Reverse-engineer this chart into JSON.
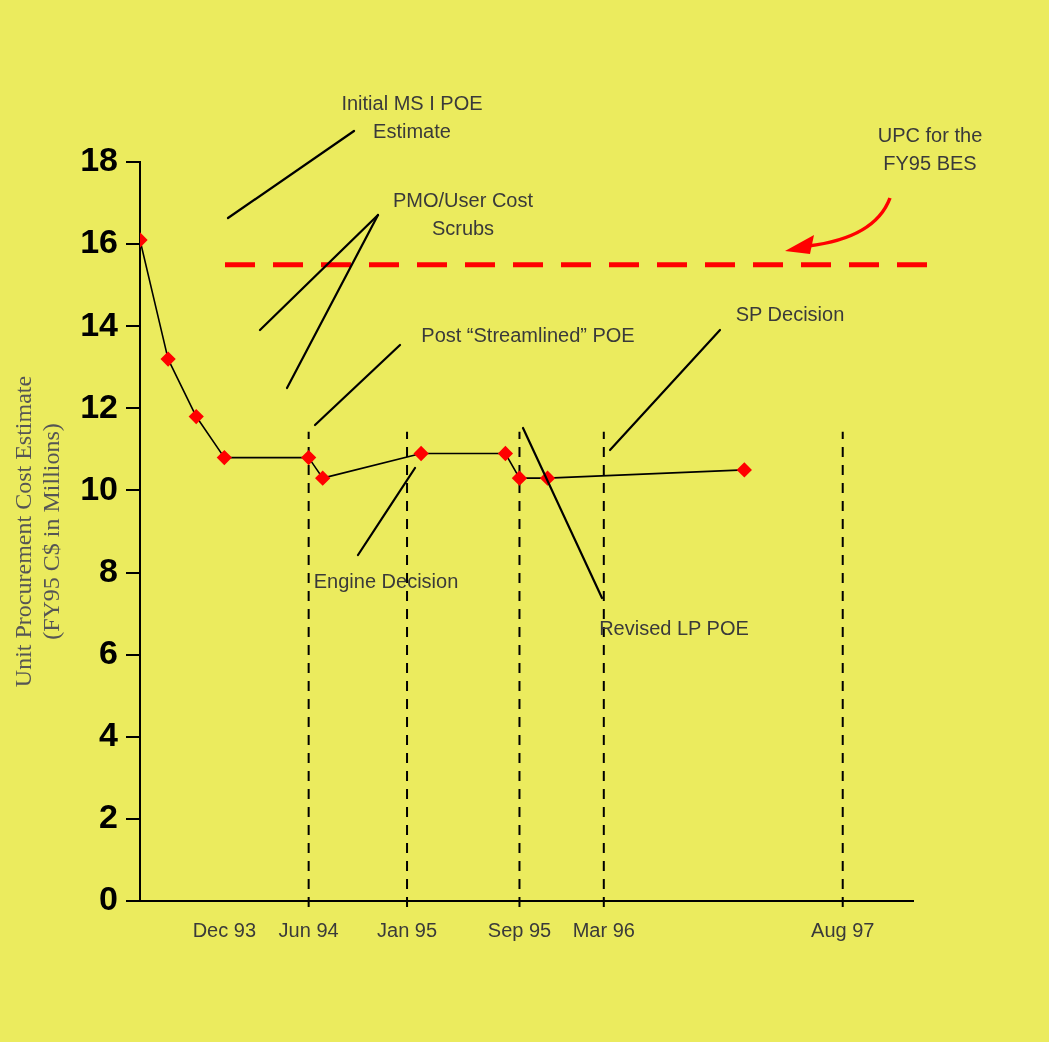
{
  "chart_data": {
    "type": "line",
    "ylabel": "Unit Procurement Cost Estimate\n(FY95 C$ in Millions)",
    "x": [
      "1993-06",
      "1993-08",
      "1993-10",
      "1993-12",
      "1994-06",
      "1994-07",
      "1995-02",
      "1995-08",
      "1995-09",
      "1995-11",
      "1997-01"
    ],
    "series": [
      {
        "color": "#ff0000",
        "values": [
          16.1,
          13.2,
          11.8,
          10.8,
          10.8,
          10.3,
          10.9,
          10.9,
          10.3,
          10.3,
          10.5
        ]
      }
    ],
    "xlim": [
      "1993-06",
      "1998-01"
    ],
    "xticks": [
      {
        "value": "1993-12",
        "label": "Dec 93"
      },
      {
        "value": "1994-06",
        "label": "Jun 94"
      },
      {
        "value": "1995-01",
        "label": "Jan 95"
      },
      {
        "value": "1995-09",
        "label": "Sep 95"
      },
      {
        "value": "1996-03",
        "label": "Mar 96"
      },
      {
        "value": "1997-08",
        "label": "Aug 97"
      }
    ],
    "ylim": [
      0,
      18
    ],
    "yticks": [
      0,
      2,
      4,
      6,
      8,
      10,
      12,
      14,
      16,
      18
    ],
    "marker": "diamond",
    "line_style": "solid",
    "grid": false,
    "legend": false,
    "ref_lines": [
      {
        "axis": "y",
        "value": 15.5,
        "color": "#ff0000",
        "line_style": "dashed"
      },
      {
        "axis": "x",
        "value": "1994-06",
        "color": "#000000",
        "line_style": "dashed"
      },
      {
        "axis": "x",
        "value": "1995-01",
        "color": "#000000",
        "line_style": "dashed"
      },
      {
        "axis": "x",
        "value": "1995-09",
        "color": "#000000",
        "line_style": "dashed"
      },
      {
        "axis": "x",
        "value": "1996-03",
        "color": "#000000",
        "line_style": "dashed"
      },
      {
        "axis": "x",
        "value": "1997-08",
        "color": "#000000",
        "line_style": "dashed"
      }
    ],
    "annotations": [
      "Initial MS I POE\nEstimate",
      "PMO/User Cost\nScrubs",
      "Post “Streamlined” POE",
      "Engine Decision",
      "Revised LP POE",
      "SP Decision",
      "UPC for the\nFY95 BES"
    ]
  }
}
